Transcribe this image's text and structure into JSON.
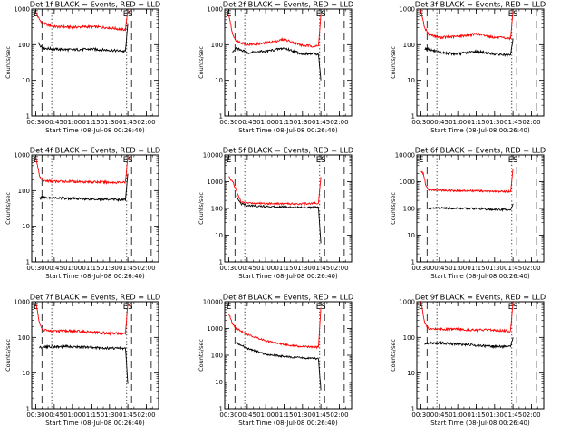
{
  "chart_data": [
    {
      "type": "line",
      "title": "Det 1f BLACK = Events, RED = LLD",
      "xlabel": "Start Time (08-Jul-08 00:26:40)",
      "ylabel": "Counts/sec",
      "y_scale": "log",
      "ylim": [
        1,
        1000
      ],
      "yticks": [
        "1",
        "10",
        "100",
        "1000"
      ],
      "xlim": [
        "00:26:40",
        "02:10:00"
      ],
      "xticks": [
        "00:30",
        "00:45",
        "01:00",
        "01:15",
        "01:30",
        "01:45",
        "02:00"
      ],
      "markers": [
        {
          "label": "",
          "time": "00:35",
          "style": "dashed"
        },
        {
          "label": "",
          "time": "00:43",
          "style": "dotted"
        },
        {
          "label": "E",
          "time": "01:44",
          "style": "dotted"
        },
        {
          "label": "S",
          "time": "01:48",
          "style": "dashed"
        },
        {
          "label": "",
          "time": "02:04",
          "style": "dashed"
        }
      ],
      "series": [
        {
          "name": "RED = LLD",
          "color": "#ff0000",
          "x": [
            "00:30",
            "00:33",
            "00:36",
            "00:45",
            "01:00",
            "01:15",
            "01:30",
            "01:43",
            "01:45"
          ],
          "y": [
            800,
            500,
            400,
            320,
            310,
            320,
            300,
            260,
            1000
          ]
        },
        {
          "name": "BLACK = Events",
          "color": "#000000",
          "x": [
            "00:32",
            "00:36",
            "00:45",
            "01:00",
            "01:15",
            "01:30",
            "01:43",
            "01:45"
          ],
          "y": [
            110,
            80,
            75,
            72,
            75,
            70,
            65,
            400
          ]
        }
      ],
      "corner_labels": {
        "left": "E",
        "right": "ES"
      }
    },
    {
      "type": "line",
      "title": "Det 2f BLACK = Events, RED = LLD",
      "xlabel": "Start Time (08-Jul-08 00:26:40)",
      "ylabel": "Counts/sec",
      "y_scale": "log",
      "ylim": [
        1,
        1000
      ],
      "yticks": [
        "1",
        "10",
        "100",
        "1000"
      ],
      "xlim": [
        "00:26:40",
        "02:10:00"
      ],
      "xticks": [
        "00:30",
        "00:45",
        "01:00",
        "01:15",
        "01:30",
        "01:45",
        "02:00"
      ],
      "markers": [
        {
          "label": "",
          "time": "00:35",
          "style": "dashed"
        },
        {
          "label": "",
          "time": "00:43",
          "style": "dotted"
        },
        {
          "label": "E",
          "time": "01:44",
          "style": "dotted"
        },
        {
          "label": "S",
          "time": "01:48",
          "style": "dashed"
        },
        {
          "label": "",
          "time": "02:04",
          "style": "dashed"
        }
      ],
      "series": [
        {
          "name": "RED = LLD",
          "color": "#ff0000",
          "x": [
            "00:30",
            "00:33",
            "00:36",
            "00:45",
            "01:00",
            "01:15",
            "01:30",
            "01:43",
            "01:45"
          ],
          "y": [
            700,
            200,
            130,
            100,
            110,
            140,
            95,
            90,
            700
          ]
        },
        {
          "name": "BLACK = Events",
          "color": "#000000",
          "x": [
            "00:33",
            "00:36",
            "00:45",
            "01:00",
            "01:15",
            "01:30",
            "01:43",
            "01:45"
          ],
          "y": [
            60,
            80,
            60,
            65,
            80,
            55,
            55,
            10
          ]
        }
      ],
      "corner_labels": {
        "left": "E",
        "right": "ES"
      }
    },
    {
      "type": "line",
      "title": "Det 3f BLACK = Events, RED = LLD",
      "xlabel": "Start Time (08-Jul-08 00:26:40)",
      "ylabel": "Counts/sec",
      "y_scale": "log",
      "ylim": [
        1,
        1000
      ],
      "yticks": [
        "1",
        "10",
        "100",
        "1000"
      ],
      "xlim": [
        "00:26:40",
        "02:10:00"
      ],
      "xticks": [
        "00:30",
        "00:45",
        "01:00",
        "01:15",
        "01:30",
        "01:45",
        "02:00"
      ],
      "markers": [
        {
          "label": "",
          "time": "00:35",
          "style": "dashed"
        },
        {
          "label": "",
          "time": "00:43",
          "style": "dotted"
        },
        {
          "label": "E",
          "time": "01:44",
          "style": "dotted"
        },
        {
          "label": "S",
          "time": "01:48",
          "style": "dashed"
        },
        {
          "label": "",
          "time": "02:04",
          "style": "dashed"
        }
      ],
      "series": [
        {
          "name": "RED = LLD",
          "color": "#ff0000",
          "x": [
            "00:30",
            "00:33",
            "00:36",
            "00:45",
            "01:00",
            "01:15",
            "01:30",
            "01:43",
            "01:45"
          ],
          "y": [
            900,
            300,
            200,
            160,
            170,
            200,
            160,
            150,
            900
          ]
        },
        {
          "name": "BLACK = Events",
          "color": "#000000",
          "x": [
            "00:33",
            "00:36",
            "00:45",
            "01:00",
            "01:15",
            "01:30",
            "01:43",
            "01:45"
          ],
          "y": [
            80,
            75,
            60,
            55,
            65,
            55,
            50,
            150
          ]
        }
      ],
      "corner_labels": {
        "left": "E",
        "right": "ES"
      }
    },
    {
      "type": "line",
      "title": "Det 4f BLACK = Events, RED = LLD",
      "xlabel": "Start Time (08-Jul-08 00:26:40)",
      "ylabel": "Counts/sec",
      "y_scale": "log",
      "ylim": [
        1,
        1000
      ],
      "yticks": [
        "1",
        "10",
        "100",
        "1000"
      ],
      "xlim": [
        "00:26:40",
        "02:10:00"
      ],
      "xticks": [
        "00:30",
        "00:45",
        "01:00",
        "01:15",
        "01:30",
        "01:45",
        "02:00"
      ],
      "markers": [
        {
          "label": "",
          "time": "00:35",
          "style": "dashed"
        },
        {
          "label": "",
          "time": "00:43",
          "style": "dotted"
        },
        {
          "label": "E",
          "time": "01:44",
          "style": "dotted"
        },
        {
          "label": "S",
          "time": "01:48",
          "style": "dashed"
        },
        {
          "label": "",
          "time": "02:04",
          "style": "dashed"
        }
      ],
      "series": [
        {
          "name": "RED = LLD",
          "color": "#ff0000",
          "x": [
            "00:30",
            "00:33",
            "00:36",
            "00:45",
            "01:00",
            "01:15",
            "01:30",
            "01:43",
            "01:45"
          ],
          "y": [
            900,
            250,
            190,
            180,
            180,
            175,
            170,
            170,
            900
          ]
        },
        {
          "name": "BLACK = Events",
          "color": "#000000",
          "x": [
            "00:33",
            "00:36",
            "00:45",
            "01:00",
            "01:15",
            "01:30",
            "01:43",
            "01:45"
          ],
          "y": [
            60,
            65,
            62,
            60,
            58,
            57,
            55,
            300
          ]
        }
      ],
      "corner_labels": {
        "left": "E",
        "right": "ES"
      }
    },
    {
      "type": "line",
      "title": "Det 5f BLACK = Events, RED = LLD",
      "xlabel": "Start Time (08-Jul-08 00:26:40)",
      "ylabel": "Counts/sec",
      "y_scale": "log",
      "ylim": [
        1,
        10000
      ],
      "yticks": [
        "1",
        "10",
        "100",
        "1000",
        "10000"
      ],
      "xlim": [
        "00:26:40",
        "02:10:00"
      ],
      "xticks": [
        "00:30",
        "00:45",
        "01:00",
        "01:15",
        "01:30",
        "01:45",
        "02:00"
      ],
      "markers": [
        {
          "label": "",
          "time": "00:35",
          "style": "dashed"
        },
        {
          "label": "",
          "time": "00:43",
          "style": "dotted"
        },
        {
          "label": "E",
          "time": "01:44",
          "style": "dotted"
        },
        {
          "label": "S",
          "time": "01:48",
          "style": "dashed"
        },
        {
          "label": "",
          "time": "02:04",
          "style": "dashed"
        }
      ],
      "series": [
        {
          "name": "RED = LLD",
          "color": "#ff0000",
          "x": [
            "00:30",
            "00:33",
            "00:36",
            "00:40",
            "00:45",
            "01:00",
            "01:15",
            "01:30",
            "01:43",
            "01:45"
          ],
          "y": [
            1500,
            1000,
            500,
            170,
            160,
            155,
            150,
            150,
            160,
            1500
          ]
        },
        {
          "name": "BLACK = Events",
          "color": "#000000",
          "x": [
            "00:36",
            "00:40",
            "00:45",
            "01:00",
            "01:15",
            "01:30",
            "01:43",
            "01:45"
          ],
          "y": [
            300,
            150,
            130,
            120,
            115,
            110,
            110,
            5
          ]
        }
      ],
      "corner_labels": {
        "left": "E",
        "right": "ES"
      }
    },
    {
      "type": "line",
      "title": "Det 6f BLACK = Events, RED = LLD",
      "xlabel": "Start Time (08-Jul-08 00:26:40)",
      "ylabel": "Counts/sec",
      "y_scale": "log",
      "ylim": [
        1,
        10000
      ],
      "yticks": [
        "1",
        "10",
        "100",
        "1000",
        "10000"
      ],
      "xlim": [
        "00:26:40",
        "02:10:00"
      ],
      "xticks": [
        "00:30",
        "00:45",
        "01:00",
        "01:15",
        "01:30",
        "01:45",
        "02:00"
      ],
      "markers": [
        {
          "label": "",
          "time": "00:35",
          "style": "dashed"
        },
        {
          "label": "",
          "time": "00:43",
          "style": "dotted"
        },
        {
          "label": "E",
          "time": "01:44",
          "style": "dotted"
        },
        {
          "label": "S",
          "time": "01:48",
          "style": "dashed"
        },
        {
          "label": "",
          "time": "02:04",
          "style": "dashed"
        }
      ],
      "series": [
        {
          "name": "RED = LLD",
          "color": "#ff0000",
          "x": [
            "00:30",
            "00:32",
            "00:34",
            "00:36",
            "00:45",
            "01:00",
            "01:15",
            "01:30",
            "01:43",
            "01:45"
          ],
          "y": [
            2500,
            2000,
            700,
            500,
            480,
            460,
            450,
            430,
            430,
            3000
          ]
        },
        {
          "name": "BLACK = Events",
          "color": "#000000",
          "x": [
            "00:36",
            "00:45",
            "01:00",
            "01:15",
            "01:30",
            "01:43",
            "01:45"
          ],
          "y": [
            100,
            105,
            100,
            100,
            90,
            90,
            150
          ]
        }
      ],
      "corner_labels": {
        "left": "E",
        "right": "ES"
      }
    },
    {
      "type": "line",
      "title": "Det 7f BLACK = Events, RED = LLD",
      "xlabel": "Start Time (08-Jul-08 00:26:40)",
      "ylabel": "Counts/sec",
      "y_scale": "log",
      "ylim": [
        1,
        1000
      ],
      "yticks": [
        "1",
        "10",
        "100",
        "1000"
      ],
      "xlim": [
        "00:26:40",
        "02:10:00"
      ],
      "xticks": [
        "00:30",
        "00:45",
        "01:00",
        "01:15",
        "01:30",
        "01:45",
        "02:00"
      ],
      "markers": [
        {
          "label": "",
          "time": "00:35",
          "style": "dashed"
        },
        {
          "label": "",
          "time": "00:43",
          "style": "dotted"
        },
        {
          "label": "E",
          "time": "01:44",
          "style": "dotted"
        },
        {
          "label": "S",
          "time": "01:48",
          "style": "dashed"
        },
        {
          "label": "",
          "time": "02:04",
          "style": "dashed"
        }
      ],
      "series": [
        {
          "name": "RED = LLD",
          "color": "#ff0000",
          "x": [
            "00:30",
            "00:33",
            "00:36",
            "00:45",
            "01:00",
            "01:15",
            "01:30",
            "01:43",
            "01:45"
          ],
          "y": [
            1000,
            250,
            160,
            150,
            150,
            140,
            130,
            130,
            900
          ]
        },
        {
          "name": "BLACK = Events",
          "color": "#000000",
          "x": [
            "00:33",
            "00:36",
            "00:45",
            "01:00",
            "01:15",
            "01:30",
            "01:43",
            "01:45"
          ],
          "y": [
            50,
            55,
            55,
            55,
            52,
            50,
            50,
            5
          ]
        }
      ],
      "corner_labels": {
        "left": "E",
        "right": "ES"
      }
    },
    {
      "type": "line",
      "title": "Det 8f BLACK = Events, RED = LLD",
      "xlabel": "Start Time (08-Jul-08 00:26:40)",
      "ylabel": "Counts/sec",
      "y_scale": "log",
      "ylim": [
        1,
        10000
      ],
      "yticks": [
        "1",
        "10",
        "100",
        "1000",
        "10000"
      ],
      "xlim": [
        "00:26:40",
        "02:10:00"
      ],
      "xticks": [
        "00:30",
        "00:45",
        "01:00",
        "01:15",
        "01:30",
        "01:45",
        "02:00"
      ],
      "markers": [
        {
          "label": "",
          "time": "00:35",
          "style": "dashed"
        },
        {
          "label": "",
          "time": "00:43",
          "style": "dotted"
        },
        {
          "label": "E",
          "time": "01:44",
          "style": "dotted"
        },
        {
          "label": "S",
          "time": "01:48",
          "style": "dashed"
        },
        {
          "label": "",
          "time": "02:04",
          "style": "dashed"
        }
      ],
      "series": [
        {
          "name": "RED = LLD",
          "color": "#ff0000",
          "x": [
            "00:30",
            "00:33",
            "00:36",
            "00:45",
            "01:00",
            "01:15",
            "01:30",
            "01:43",
            "01:45"
          ],
          "y": [
            3500,
            1500,
            1000,
            600,
            350,
            250,
            210,
            200,
            6000
          ]
        },
        {
          "name": "BLACK = Events",
          "color": "#000000",
          "x": [
            "00:36",
            "00:45",
            "01:00",
            "01:15",
            "01:30",
            "01:43",
            "01:45"
          ],
          "y": [
            300,
            180,
            110,
            90,
            80,
            75,
            5
          ]
        }
      ],
      "corner_labels": {
        "left": "E",
        "right": "ES"
      }
    },
    {
      "type": "line",
      "title": "Det 9f BLACK = Events, RED = LLD",
      "xlabel": "Start Time (08-Jul-08 00:26:40)",
      "ylabel": "Counts/sec",
      "y_scale": "log",
      "ylim": [
        1,
        1000
      ],
      "yticks": [
        "1",
        "10",
        "100",
        "1000"
      ],
      "xlim": [
        "00:26:40",
        "02:10:00"
      ],
      "xticks": [
        "00:30",
        "00:45",
        "01:00",
        "01:15",
        "01:30",
        "01:45",
        "02:00"
      ],
      "markers": [
        {
          "label": "",
          "time": "00:35",
          "style": "dashed"
        },
        {
          "label": "",
          "time": "00:43",
          "style": "dotted"
        },
        {
          "label": "E",
          "time": "01:44",
          "style": "dotted"
        },
        {
          "label": "S",
          "time": "01:48",
          "style": "dashed"
        },
        {
          "label": "",
          "time": "02:04",
          "style": "dashed"
        }
      ],
      "series": [
        {
          "name": "RED = LLD",
          "color": "#ff0000",
          "x": [
            "00:30",
            "00:33",
            "00:36",
            "00:45",
            "01:00",
            "01:15",
            "01:30",
            "01:43",
            "01:45"
          ],
          "y": [
            1000,
            250,
            180,
            170,
            170,
            160,
            160,
            150,
            1000
          ]
        },
        {
          "name": "BLACK = Events",
          "color": "#000000",
          "x": [
            "00:33",
            "00:36",
            "00:45",
            "01:00",
            "01:15",
            "01:30",
            "01:43",
            "01:45"
          ],
          "y": [
            60,
            70,
            70,
            65,
            60,
            55,
            55,
            100
          ]
        }
      ],
      "corner_labels": {
        "left": "E",
        "right": "ES"
      }
    }
  ]
}
